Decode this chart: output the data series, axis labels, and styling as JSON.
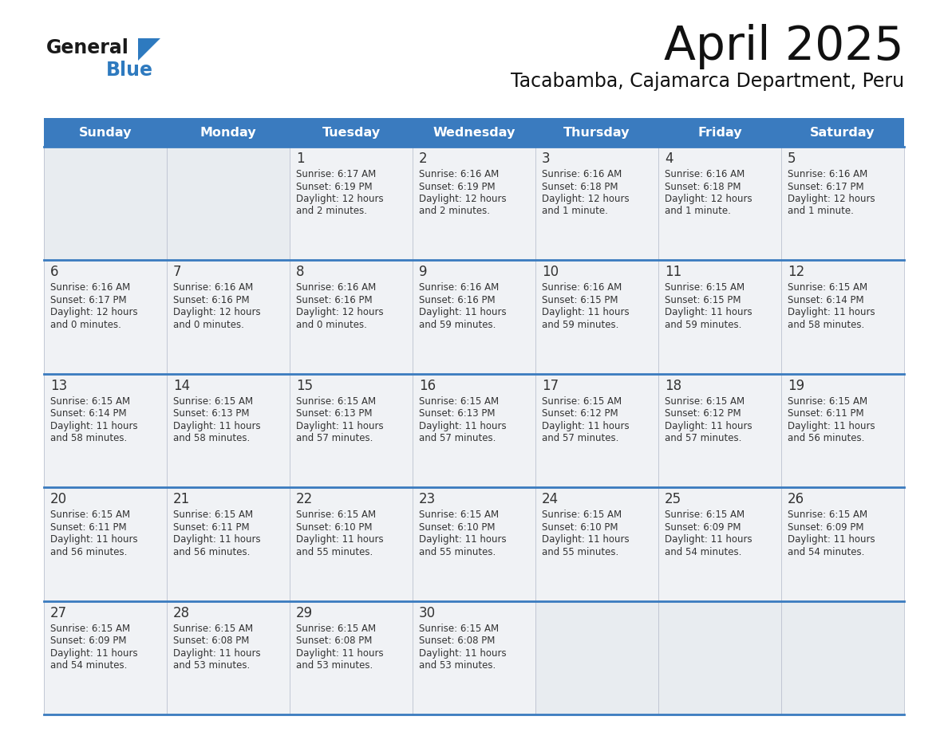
{
  "title": "April 2025",
  "subtitle": "Tacabamba, Cajamarca Department, Peru",
  "header_bg_color": "#3a7bbf",
  "header_text_color": "#ffffff",
  "cell_bg_color": "#f0f2f5",
  "cell_bg_empty": "#e8ecf0",
  "border_color": "#3a7bbf",
  "border_color_light": "#b0b8c8",
  "text_color": "#333333",
  "logo_text_color": "#1a1a1a",
  "logo_blue_color": "#2e7abf",
  "days_of_week": [
    "Sunday",
    "Monday",
    "Tuesday",
    "Wednesday",
    "Thursday",
    "Friday",
    "Saturday"
  ],
  "weeks": [
    [
      {
        "day": "",
        "sunrise": "",
        "sunset": "",
        "daylight": ""
      },
      {
        "day": "",
        "sunrise": "",
        "sunset": "",
        "daylight": ""
      },
      {
        "day": "1",
        "sunrise": "Sunrise: 6:17 AM",
        "sunset": "Sunset: 6:19 PM",
        "daylight": "Daylight: 12 hours\nand 2 minutes."
      },
      {
        "day": "2",
        "sunrise": "Sunrise: 6:16 AM",
        "sunset": "Sunset: 6:19 PM",
        "daylight": "Daylight: 12 hours\nand 2 minutes."
      },
      {
        "day": "3",
        "sunrise": "Sunrise: 6:16 AM",
        "sunset": "Sunset: 6:18 PM",
        "daylight": "Daylight: 12 hours\nand 1 minute."
      },
      {
        "day": "4",
        "sunrise": "Sunrise: 6:16 AM",
        "sunset": "Sunset: 6:18 PM",
        "daylight": "Daylight: 12 hours\nand 1 minute."
      },
      {
        "day": "5",
        "sunrise": "Sunrise: 6:16 AM",
        "sunset": "Sunset: 6:17 PM",
        "daylight": "Daylight: 12 hours\nand 1 minute."
      }
    ],
    [
      {
        "day": "6",
        "sunrise": "Sunrise: 6:16 AM",
        "sunset": "Sunset: 6:17 PM",
        "daylight": "Daylight: 12 hours\nand 0 minutes."
      },
      {
        "day": "7",
        "sunrise": "Sunrise: 6:16 AM",
        "sunset": "Sunset: 6:16 PM",
        "daylight": "Daylight: 12 hours\nand 0 minutes."
      },
      {
        "day": "8",
        "sunrise": "Sunrise: 6:16 AM",
        "sunset": "Sunset: 6:16 PM",
        "daylight": "Daylight: 12 hours\nand 0 minutes."
      },
      {
        "day": "9",
        "sunrise": "Sunrise: 6:16 AM",
        "sunset": "Sunset: 6:16 PM",
        "daylight": "Daylight: 11 hours\nand 59 minutes."
      },
      {
        "day": "10",
        "sunrise": "Sunrise: 6:16 AM",
        "sunset": "Sunset: 6:15 PM",
        "daylight": "Daylight: 11 hours\nand 59 minutes."
      },
      {
        "day": "11",
        "sunrise": "Sunrise: 6:15 AM",
        "sunset": "Sunset: 6:15 PM",
        "daylight": "Daylight: 11 hours\nand 59 minutes."
      },
      {
        "day": "12",
        "sunrise": "Sunrise: 6:15 AM",
        "sunset": "Sunset: 6:14 PM",
        "daylight": "Daylight: 11 hours\nand 58 minutes."
      }
    ],
    [
      {
        "day": "13",
        "sunrise": "Sunrise: 6:15 AM",
        "sunset": "Sunset: 6:14 PM",
        "daylight": "Daylight: 11 hours\nand 58 minutes."
      },
      {
        "day": "14",
        "sunrise": "Sunrise: 6:15 AM",
        "sunset": "Sunset: 6:13 PM",
        "daylight": "Daylight: 11 hours\nand 58 minutes."
      },
      {
        "day": "15",
        "sunrise": "Sunrise: 6:15 AM",
        "sunset": "Sunset: 6:13 PM",
        "daylight": "Daylight: 11 hours\nand 57 minutes."
      },
      {
        "day": "16",
        "sunrise": "Sunrise: 6:15 AM",
        "sunset": "Sunset: 6:13 PM",
        "daylight": "Daylight: 11 hours\nand 57 minutes."
      },
      {
        "day": "17",
        "sunrise": "Sunrise: 6:15 AM",
        "sunset": "Sunset: 6:12 PM",
        "daylight": "Daylight: 11 hours\nand 57 minutes."
      },
      {
        "day": "18",
        "sunrise": "Sunrise: 6:15 AM",
        "sunset": "Sunset: 6:12 PM",
        "daylight": "Daylight: 11 hours\nand 57 minutes."
      },
      {
        "day": "19",
        "sunrise": "Sunrise: 6:15 AM",
        "sunset": "Sunset: 6:11 PM",
        "daylight": "Daylight: 11 hours\nand 56 minutes."
      }
    ],
    [
      {
        "day": "20",
        "sunrise": "Sunrise: 6:15 AM",
        "sunset": "Sunset: 6:11 PM",
        "daylight": "Daylight: 11 hours\nand 56 minutes."
      },
      {
        "day": "21",
        "sunrise": "Sunrise: 6:15 AM",
        "sunset": "Sunset: 6:11 PM",
        "daylight": "Daylight: 11 hours\nand 56 minutes."
      },
      {
        "day": "22",
        "sunrise": "Sunrise: 6:15 AM",
        "sunset": "Sunset: 6:10 PM",
        "daylight": "Daylight: 11 hours\nand 55 minutes."
      },
      {
        "day": "23",
        "sunrise": "Sunrise: 6:15 AM",
        "sunset": "Sunset: 6:10 PM",
        "daylight": "Daylight: 11 hours\nand 55 minutes."
      },
      {
        "day": "24",
        "sunrise": "Sunrise: 6:15 AM",
        "sunset": "Sunset: 6:10 PM",
        "daylight": "Daylight: 11 hours\nand 55 minutes."
      },
      {
        "day": "25",
        "sunrise": "Sunrise: 6:15 AM",
        "sunset": "Sunset: 6:09 PM",
        "daylight": "Daylight: 11 hours\nand 54 minutes."
      },
      {
        "day": "26",
        "sunrise": "Sunrise: 6:15 AM",
        "sunset": "Sunset: 6:09 PM",
        "daylight": "Daylight: 11 hours\nand 54 minutes."
      }
    ],
    [
      {
        "day": "27",
        "sunrise": "Sunrise: 6:15 AM",
        "sunset": "Sunset: 6:09 PM",
        "daylight": "Daylight: 11 hours\nand 54 minutes."
      },
      {
        "day": "28",
        "sunrise": "Sunrise: 6:15 AM",
        "sunset": "Sunset: 6:08 PM",
        "daylight": "Daylight: 11 hours\nand 53 minutes."
      },
      {
        "day": "29",
        "sunrise": "Sunrise: 6:15 AM",
        "sunset": "Sunset: 6:08 PM",
        "daylight": "Daylight: 11 hours\nand 53 minutes."
      },
      {
        "day": "30",
        "sunrise": "Sunrise: 6:15 AM",
        "sunset": "Sunset: 6:08 PM",
        "daylight": "Daylight: 11 hours\nand 53 minutes."
      },
      {
        "day": "",
        "sunrise": "",
        "sunset": "",
        "daylight": ""
      },
      {
        "day": "",
        "sunrise": "",
        "sunset": "",
        "daylight": ""
      },
      {
        "day": "",
        "sunrise": "",
        "sunset": "",
        "daylight": ""
      }
    ]
  ]
}
